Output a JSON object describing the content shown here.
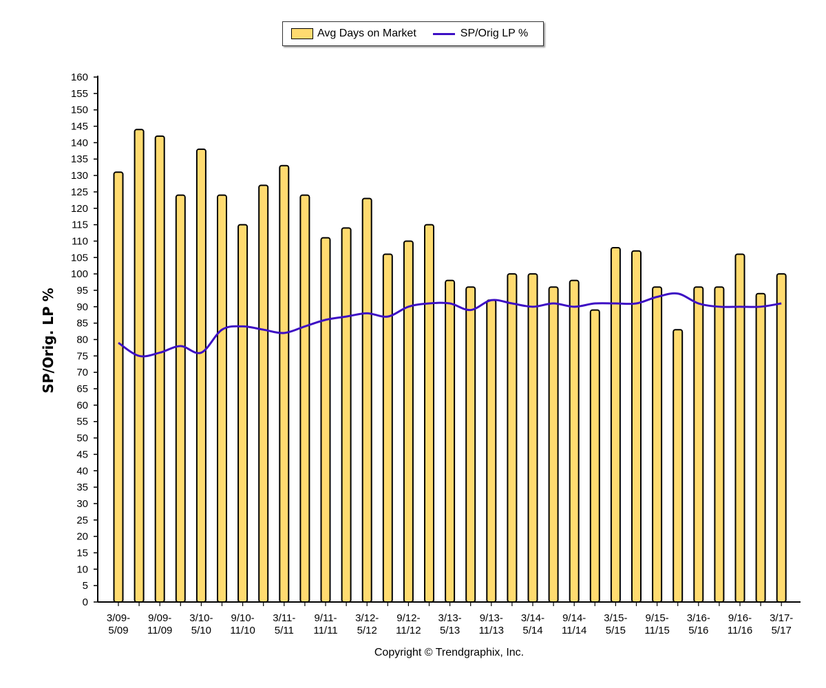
{
  "legend": {
    "bar_label": "Avg Days on Market",
    "line_label": "SP/Orig LP %"
  },
  "copyright": "Copyright © Trendgraphix, Inc.",
  "chart_data": {
    "type": "bar",
    "ylabel": "SP/Orig. LP %",
    "ylim": [
      0,
      160
    ],
    "ytick_step": 5,
    "grid": false,
    "legend_position": "top-center",
    "colors": {
      "bar_fill": "#FFDB70",
      "bar_stroke": "#000000",
      "line": "#3D0FC4"
    },
    "x_tick_labels": [
      [
        "3/09-",
        "5/09"
      ],
      [
        "9/09-",
        "11/09"
      ],
      [
        "3/10-",
        "5/10"
      ],
      [
        "9/10-",
        "11/10"
      ],
      [
        "3/11-",
        "5/11"
      ],
      [
        "9/11-",
        "11/11"
      ],
      [
        "3/12-",
        "5/12"
      ],
      [
        "9/12-",
        "11/12"
      ],
      [
        "3/13-",
        "5/13"
      ],
      [
        "9/13-",
        "11/13"
      ],
      [
        "3/14-",
        "5/14"
      ],
      [
        "9/14-",
        "11/14"
      ],
      [
        "3/15-",
        "5/15"
      ],
      [
        "9/15-",
        "11/15"
      ],
      [
        "3/16-",
        "5/16"
      ],
      [
        "9/16-",
        "11/16"
      ],
      [
        "3/17-",
        "5/17"
      ]
    ],
    "series": [
      {
        "name": "Avg Days on Market",
        "type": "bar",
        "values": [
          131,
          144,
          142,
          124,
          138,
          124,
          115,
          127,
          133,
          124,
          111,
          114,
          123,
          106,
          110,
          115,
          98,
          96,
          92,
          100,
          100,
          96,
          98,
          89,
          108,
          107,
          96,
          83,
          96,
          96,
          106,
          94,
          100
        ]
      },
      {
        "name": "SP/Orig LP %",
        "type": "line",
        "values": [
          79,
          75,
          76,
          78,
          76,
          83,
          84,
          83,
          82,
          84,
          86,
          87,
          88,
          87,
          90,
          91,
          91,
          89,
          92,
          91,
          90,
          91,
          90,
          91,
          91,
          91,
          93,
          94,
          91,
          90,
          90,
          90,
          91
        ]
      }
    ]
  }
}
